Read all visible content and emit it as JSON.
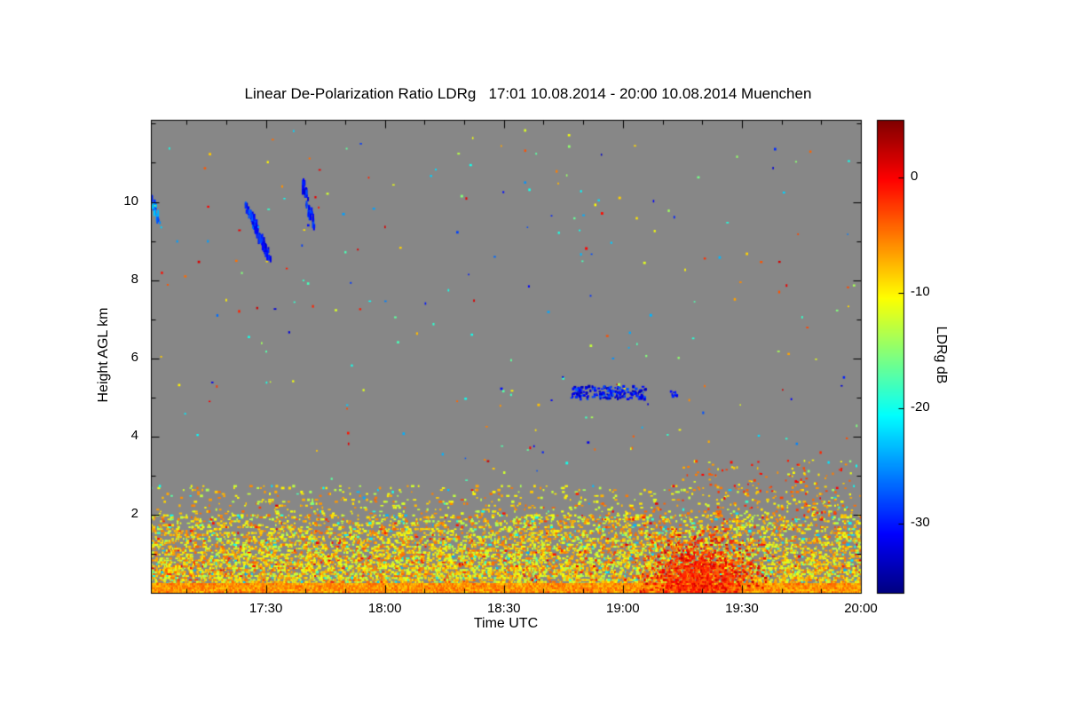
{
  "title": "Linear De-Polarization Ratio LDRg   17:01 10.08.2014 - 20:00 10.08.2014 Muenchen",
  "chart_data": {
    "type": "heatmap",
    "title": "Linear De-Polarization Ratio LDRg   17:01 10.08.2014 - 20:00 10.08.2014 Muenchen",
    "station": "Muenchen",
    "time_start": "17:01 10.08.2014",
    "time_end": "20:00 10.08.2014",
    "xlabel": "Time UTC",
    "ylabel": "Height AGL km",
    "colorbar_label": "LDRg dB",
    "x_range_utc": [
      "17:01",
      "20:00"
    ],
    "x_tick_labels": [
      "17:30",
      "18:00",
      "18:30",
      "19:00",
      "19:30",
      "20:00"
    ],
    "x_minor_tick_minutes": 10,
    "y_range_km": [
      0,
      12.1
    ],
    "y_tick_labels": [
      2,
      4,
      6,
      8,
      10
    ],
    "colorbar_range_db": [
      5,
      -36
    ],
    "colorbar_tick_labels": [
      0,
      -10,
      -20,
      -30
    ],
    "colormap": "jet",
    "no_signal_color": "#878787",
    "background_color": "#ffffff",
    "features": [
      {
        "kind": "speckle-layer",
        "name": "boundary-layer-aerosol-speckle",
        "time_utc": [
          "17:01",
          "20:00"
        ],
        "height_km": [
          0,
          2.75
        ],
        "ldr_db": [
          -14,
          -4
        ]
      },
      {
        "kind": "surface-band",
        "name": "near-surface-echo",
        "time_utc": [
          "17:01",
          "20:00"
        ],
        "height_km": [
          0,
          0.25
        ],
        "ldr_db": [
          -9,
          -3
        ]
      },
      {
        "kind": "plume",
        "name": "high-ldr-plume",
        "time_utc": [
          "19:03",
          "19:36"
        ],
        "height_km": [
          0,
          1.7
        ],
        "ldr_db": [
          -5,
          2
        ]
      },
      {
        "kind": "scatter",
        "name": "right-side-warm-specks",
        "time_utc": [
          "19:15",
          "19:58"
        ],
        "height_km": [
          1.9,
          3.4
        ],
        "ldr_db": [
          -12,
          0
        ],
        "count": 160
      },
      {
        "kind": "fallstreak",
        "name": "cirrus-fallstreak-1",
        "time_utc": [
          "17:25",
          "17:31"
        ],
        "height_km": [
          8.55,
          9.95
        ],
        "ldr_db": [
          -33,
          -26
        ],
        "count": 95
      },
      {
        "kind": "fallstreak",
        "name": "cirrus-fallstreak-2",
        "time_utc": [
          "17:39",
          "17:42"
        ],
        "height_km": [
          9.35,
          10.6
        ],
        "ldr_db": [
          -33,
          -27
        ],
        "count": 48
      },
      {
        "kind": "fallstreak",
        "name": "left-edge-cloud",
        "time_utc": [
          "17:01",
          "17:03"
        ],
        "height_km": [
          9.5,
          10.15
        ],
        "ldr_db": [
          -30,
          -22
        ],
        "count": 26
      },
      {
        "kind": "patch",
        "name": "mid-level-cloud",
        "time_utc": [
          "18:47",
          "19:06"
        ],
        "height_km": [
          4.95,
          5.28
        ],
        "ldr_db": [
          -34,
          -27
        ],
        "count": 170
      },
      {
        "kind": "patch",
        "name": "mid-level-cloud-fragment",
        "time_utc": [
          "19:12",
          "19:14"
        ],
        "height_km": [
          5.0,
          5.15
        ],
        "ldr_db": [
          -32,
          -28
        ],
        "count": 10
      },
      {
        "kind": "scatter",
        "name": "sparse-specks-aloft",
        "time_utc": [
          "17:01",
          "20:00"
        ],
        "height_km": [
          2.8,
          11.9
        ],
        "ldr_db": [
          -33,
          2
        ],
        "count": 240
      }
    ]
  }
}
